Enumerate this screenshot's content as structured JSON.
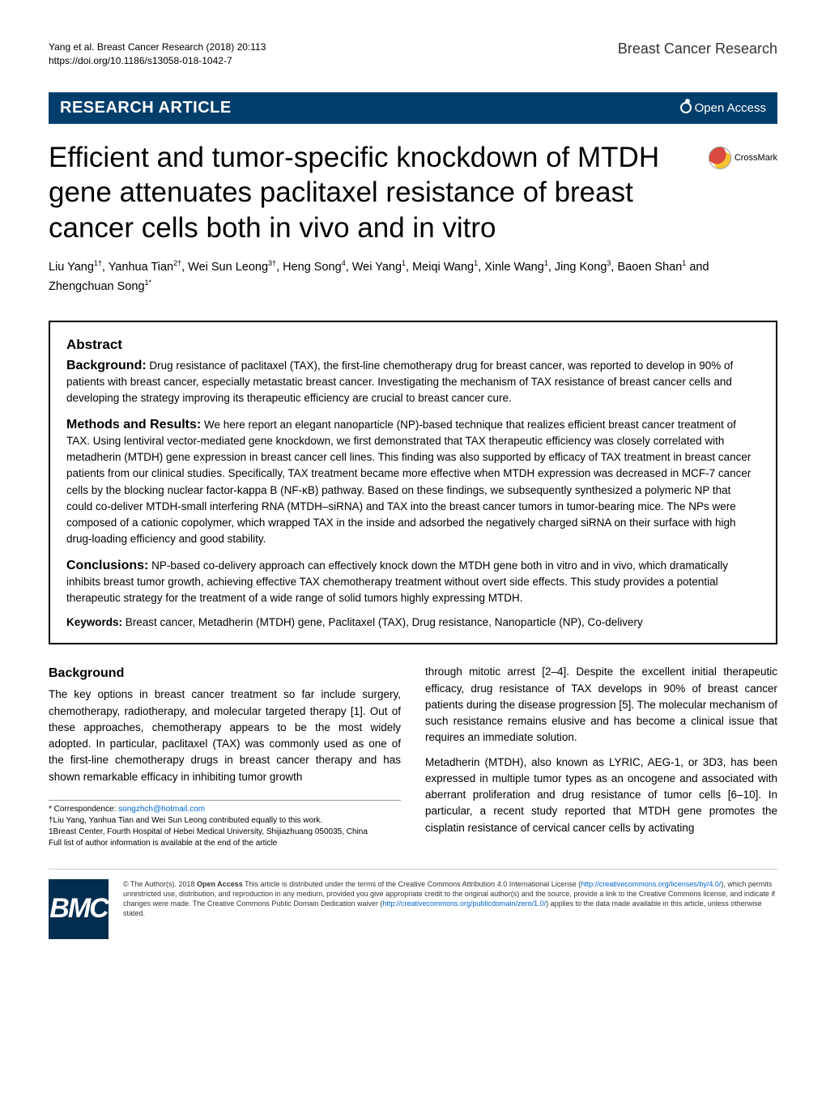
{
  "header": {
    "citation_line1": "Yang et al. Breast Cancer Research           (2018) 20:113",
    "citation_line2": "https://doi.org/10.1186/s13058-018-1042-7",
    "journal_name": "Breast Cancer Research"
  },
  "banner": {
    "article_type": "RESEARCH ARTICLE",
    "open_access": "Open Access"
  },
  "title": "Efficient and tumor-specific knockdown of MTDH gene attenuates paclitaxel resistance of breast cancer cells both in vivo and in vitro",
  "crossmark_label": "CrossMark",
  "authors_html": "Liu Yang<sup>1†</sup>, Yanhua Tian<sup>2†</sup>, Wei Sun Leong<sup>3†</sup>, Heng Song<sup>4</sup>, Wei Yang<sup>1</sup>, Meiqi Wang<sup>1</sup>, Xinle Wang<sup>1</sup>, Jing Kong<sup>3</sup>, Baoen Shan<sup>1</sup> and Zhengchuan Song<sup>1*</sup>",
  "abstract": {
    "heading": "Abstract",
    "background": {
      "label": "Background:",
      "text": " Drug resistance of paclitaxel (TAX), the first-line chemotherapy drug for breast cancer, was reported to develop in 90% of patients with breast cancer, especially metastatic breast cancer. Investigating the mechanism of TAX resistance of breast cancer cells and developing the strategy improving its therapeutic efficiency are crucial to breast cancer cure."
    },
    "methods": {
      "label": "Methods and Results:",
      "text": " We here report an elegant nanoparticle (NP)-based technique that realizes efficient breast cancer treatment of TAX. Using lentiviral vector-mediated gene knockdown, we first demonstrated that TAX therapeutic efficiency was closely correlated with metadherin (MTDH) gene expression in breast cancer cell lines. This finding was also supported by efficacy of TAX treatment in breast cancer patients from our clinical studies. Specifically, TAX treatment became more effective when MTDH expression was decreased in MCF-7 cancer cells by the blocking nuclear factor-kappa B (NF-κB) pathway. Based on these findings, we subsequently synthesized a polymeric NP that could co-deliver MTDH-small interfering RNA (MTDH–siRNA) and TAX into the breast cancer tumors in tumor-bearing mice. The NPs were composed of a cationic copolymer, which wrapped TAX in the inside and adsorbed the negatively charged siRNA on their surface with high drug-loading efficiency and good stability."
    },
    "conclusions": {
      "label": "Conclusions:",
      "text": " NP-based co-delivery approach can effectively knock down the MTDH gene both in vitro and in vivo, which dramatically inhibits breast tumor growth, achieving effective TAX chemotherapy treatment without overt side effects. This study provides a potential therapeutic strategy for the treatment of a wide range of solid tumors highly expressing MTDH."
    },
    "keywords": {
      "label": "Keywords:",
      "text": " Breast cancer, Metadherin (MTDH) gene, Paclitaxel (TAX), Drug resistance, Nanoparticle (NP), Co-delivery"
    }
  },
  "body": {
    "background_heading": "Background",
    "left_col_p1": "The key options in breast cancer treatment so far include surgery, chemotherapy, radiotherapy, and molecular targeted therapy [1]. Out of these approaches, chemotherapy appears to be the most widely adopted. In particular, paclitaxel (TAX) was commonly used as one of the first-line chemotherapy drugs in breast cancer therapy and has shown remarkable efficacy in inhibiting tumor growth",
    "right_col_p1": "through mitotic arrest [2–4]. Despite the excellent initial therapeutic efficacy, drug resistance of TAX develops in 90% of breast cancer patients during the disease progression [5]. The molecular mechanism of such resistance remains elusive and has become a clinical issue that requires an immediate solution.",
    "right_col_p2": "Metadherin (MTDH), also known as LYRIC, AEG-1, or 3D3, has been expressed in multiple tumor types as an oncogene and associated with aberrant proliferation and drug resistance of tumor cells [6–10]. In particular, a recent study reported that MTDH gene promotes the cisplatin resistance of cervical cancer cells by activating"
  },
  "footnote": {
    "correspondence_label": "* Correspondence: ",
    "correspondence_email": "songzhch@hotmail.com",
    "equal_contrib": "†Liu Yang, Yanhua Tian and Wei Sun Leong contributed equally to this work.",
    "affiliation": "1Breast Center, Fourth Hospital of Hebei Medical University, Shijiazhuang 050035, China",
    "full_list": "Full list of author information is available at the end of the article"
  },
  "footer": {
    "bmc_logo_text": "BMC",
    "license_prefix": "© The Author(s). 2018 ",
    "license_bold": "Open Access",
    "license_text1": " This article is distributed under the terms of the Creative Commons Attribution 4.0 International License (",
    "license_url1": "http://creativecommons.org/licenses/by/4.0/",
    "license_text2": "), which permits unrestricted use, distribution, and reproduction in any medium, provided you give appropriate credit to the original author(s) and the source, provide a link to the Creative Commons license, and indicate if changes were made. The Creative Commons Public Domain Dedication waiver (",
    "license_url2": "http://creativecommons.org/publicdomain/zero/1.0/",
    "license_text3": ") applies to the data made available in this article, unless otherwise stated."
  },
  "colors": {
    "banner_bg": "#023e6b",
    "bmc_bg": "#012d4f",
    "link": "#0066cc"
  }
}
